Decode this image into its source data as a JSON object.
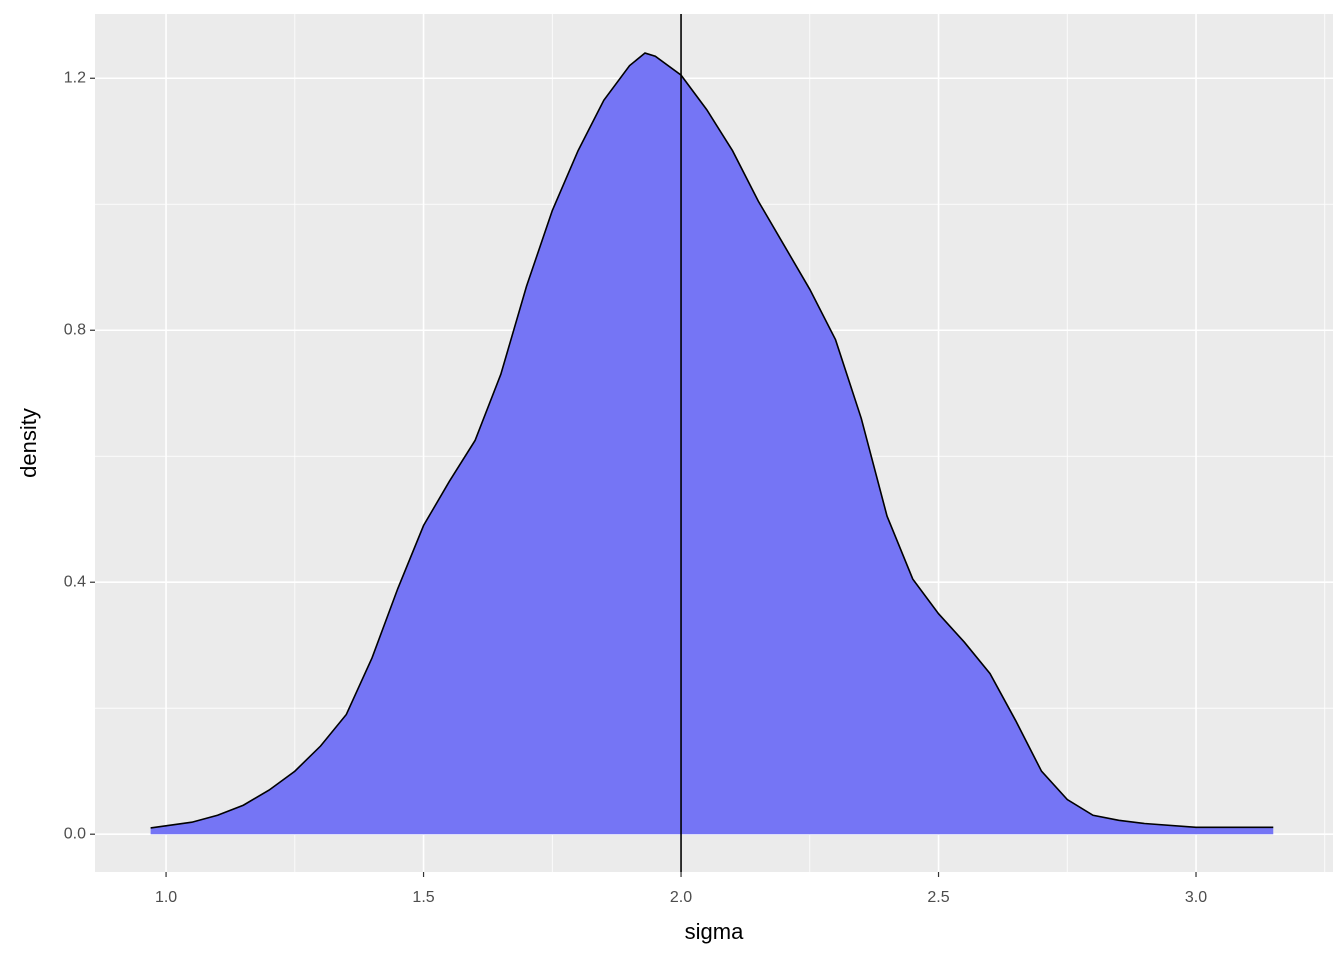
{
  "chart_data": {
    "type": "area",
    "x_label": "sigma",
    "y_label": "density",
    "x": [
      0.97,
      1.05,
      1.1,
      1.15,
      1.2,
      1.25,
      1.3,
      1.35,
      1.4,
      1.45,
      1.5,
      1.55,
      1.6,
      1.65,
      1.7,
      1.75,
      1.8,
      1.85,
      1.9,
      1.93,
      1.95,
      2.0,
      2.05,
      2.1,
      2.15,
      2.2,
      2.25,
      2.3,
      2.35,
      2.4,
      2.45,
      2.5,
      2.55,
      2.6,
      2.65,
      2.7,
      2.75,
      2.8,
      2.85,
      2.9,
      3.0,
      3.15
    ],
    "values": [
      0.01,
      0.019,
      0.03,
      0.046,
      0.07,
      0.1,
      0.14,
      0.19,
      0.28,
      0.39,
      0.49,
      0.56,
      0.625,
      0.73,
      0.87,
      0.99,
      1.085,
      1.165,
      1.22,
      1.24,
      1.235,
      1.205,
      1.15,
      1.085,
      1.005,
      0.935,
      0.865,
      0.785,
      0.66,
      0.505,
      0.405,
      0.35,
      0.305,
      0.255,
      0.18,
      0.1,
      0.055,
      0.03,
      0.022,
      0.017,
      0.011,
      0.011
    ],
    "color": "#7575f5",
    "line_color": "#000000",
    "vline": 2,
    "xlim": [
      0.862,
      3.266
    ],
    "ylim": [
      -0.06,
      1.302
    ],
    "xticks": [
      {
        "value": 1,
        "label": "1.0"
      },
      {
        "value": 1.5,
        "label": "1.5"
      },
      {
        "value": 2,
        "label": "2.0"
      },
      {
        "value": 2.5,
        "label": "2.5"
      },
      {
        "value": 3,
        "label": "3.0"
      }
    ],
    "yticks": [
      {
        "value": 0,
        "label": "0.0"
      },
      {
        "value": 0.4,
        "label": "0.4"
      },
      {
        "value": 0.8,
        "label": "0.8"
      },
      {
        "value": 1.2,
        "label": "1.2"
      }
    ],
    "grid": true
  }
}
